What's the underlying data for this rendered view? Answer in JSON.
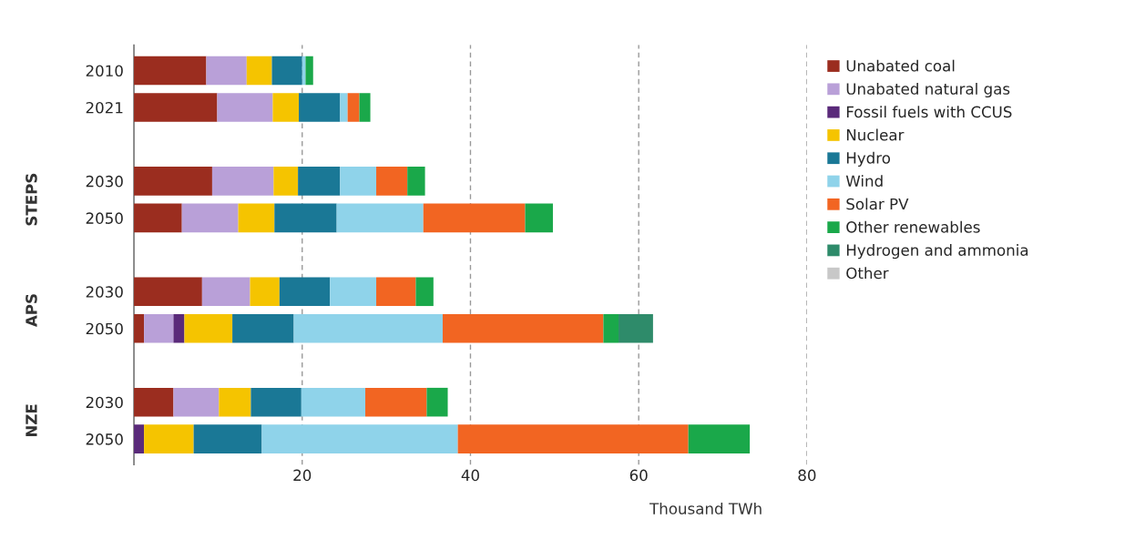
{
  "chart_data": {
    "type": "bar",
    "orientation": "horizontal",
    "stacked": true,
    "categories": [
      "2010",
      "2021",
      "2030",
      "2050",
      "2030",
      "2050",
      "2030",
      "2050"
    ],
    "series": [
      {
        "name": "Unabated coal",
        "color": "#9b2d1f",
        "values": [
          8.6,
          9.9,
          9.3,
          5.7,
          8.1,
          1.2,
          4.7,
          0
        ]
      },
      {
        "name": "Unabated natural gas",
        "color": "#b9a0d8",
        "values": [
          4.8,
          6.6,
          7.3,
          6.7,
          5.7,
          3.5,
          5.4,
          0
        ]
      },
      {
        "name": "Fossil fuels with CCUS",
        "color": "#5a2a7a",
        "values": [
          0,
          0,
          0,
          0,
          0,
          1.3,
          0,
          1.2
        ]
      },
      {
        "name": "Nuclear",
        "color": "#f5c400",
        "values": [
          3.0,
          3.1,
          2.9,
          4.3,
          3.5,
          5.7,
          3.8,
          5.9
        ]
      },
      {
        "name": "Hydro",
        "color": "#1a7896",
        "values": [
          3.6,
          4.9,
          5.0,
          7.4,
          6.0,
          7.3,
          6.0,
          8.1
        ]
      },
      {
        "name": "Wind",
        "color": "#8fd3ea",
        "values": [
          0.4,
          0.9,
          4.3,
          10.3,
          5.5,
          17.7,
          7.6,
          23.3
        ]
      },
      {
        "name": "Solar PV",
        "color": "#f26522",
        "values": [
          0,
          1.4,
          3.7,
          12.1,
          4.7,
          19.1,
          7.3,
          27.4
        ]
      },
      {
        "name": "Other renewables",
        "color": "#1aa84a",
        "values": [
          0.9,
          1.3,
          2.1,
          3.3,
          2.1,
          1.8,
          2.5,
          7.3
        ]
      },
      {
        "name": "Hydrogen and ammonia",
        "color": "#2e8b6a",
        "values": [
          0,
          0,
          0,
          0,
          0,
          4.1,
          0,
          0
        ]
      },
      {
        "name": "Other",
        "color": "#c8c8c8",
        "values": [
          0,
          0,
          0,
          0,
          0,
          0,
          0,
          0
        ]
      }
    ],
    "xlabel": "Thousand TWh",
    "xlim": [
      0,
      80
    ],
    "xticks": [
      20,
      40,
      60,
      80
    ],
    "annotations": [
      "STEPS",
      "APS",
      "NZE"
    ],
    "grid": "x",
    "legend": "right"
  }
}
